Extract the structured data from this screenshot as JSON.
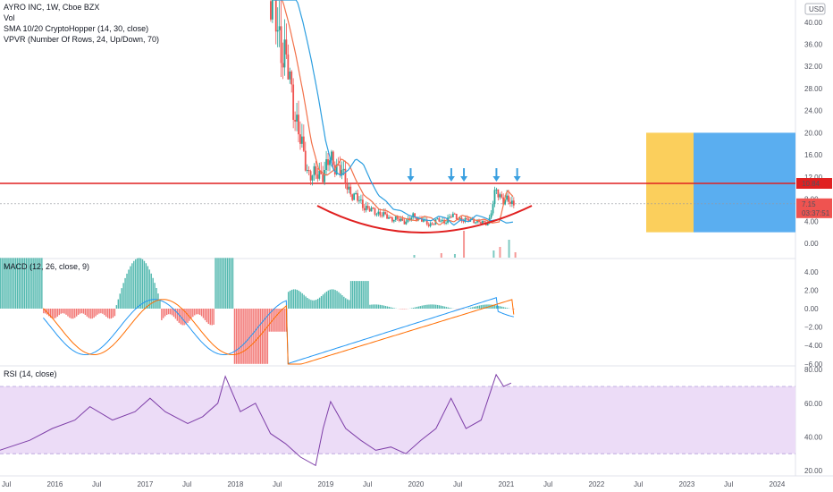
{
  "legend": {
    "symbol_line": "AYRO INC, 1W, Cboe BZX",
    "vol": "Vol",
    "sma": "SMA 10/20 CryptoHopper (14, 30, close)",
    "vpvr": "VPVR (Number Of Rows, 24, Up/Down, 70)",
    "macd": "MACD (12, 26, close, 9)",
    "rsi": "RSI (14, close)"
  },
  "currency_badge": "USD",
  "price_tags": {
    "resistance": "10.84",
    "last": "7.15",
    "countdown": "03:37:51"
  },
  "colors": {
    "up": "#26a69a",
    "down": "#ef5350",
    "resistance": "#e02020",
    "sma_fast": "#f2714a",
    "sma_slow": "#2c9ee0",
    "arrow": "#3ba0e0",
    "box_yellow": "#fbcf5c",
    "box_blue": "#5aaef0",
    "macd_line": "#2196f3",
    "signal_line": "#ff6d00",
    "rsi_line": "#7e3fa8",
    "rsi_band": "#ecdcf7"
  },
  "time_axis": [
    "Jul",
    "2016",
    "Jul",
    "2017",
    "Jul",
    "2018",
    "Jul",
    "2019",
    "Jul",
    "2020",
    "Jul",
    "2021",
    "Jul",
    "2022",
    "Jul",
    "2023",
    "Jul",
    "2024"
  ],
  "chart_data": [
    {
      "type": "candlestick",
      "title": "AYRO INC, 1W, Cboe BZX",
      "y_axis_ticks": [
        "0.00",
        "4.00",
        "8.00",
        "12.00",
        "16.00",
        "20.00",
        "24.00",
        "28.00",
        "32.00",
        "36.00",
        "40.00"
      ],
      "ylim": [
        -1,
        44
      ],
      "resistance_level": 10.84,
      "last_price": 7.15,
      "annotations": [
        "horizontal resistance line at 10.84",
        "rounded-bottom arc",
        "5 down arrows",
        "yellow and blue projection boxes"
      ],
      "close_series": {
        "x": [
          "2018-06",
          "2018-07",
          "2018-08",
          "2018-09",
          "2018-10",
          "2018-11",
          "2018-12",
          "2019-01",
          "2019-02",
          "2019-03",
          "2019-04",
          "2019-05",
          "2019-06",
          "2019-07",
          "2019-08",
          "2019-09",
          "2019-10",
          "2019-11",
          "2019-12",
          "2020-01",
          "2020-02",
          "2020-03",
          "2020-04",
          "2020-05",
          "2020-06",
          "2020-07",
          "2020-08",
          "2020-09",
          "2020-10",
          "2020-11",
          "2020-12",
          "2021-01",
          "2021-02"
        ],
        "y": [
          44,
          39,
          33,
          26,
          18,
          13,
          12,
          13,
          15,
          14,
          11,
          8.5,
          7.5,
          6,
          5.8,
          5,
          4.6,
          4.2,
          4,
          4.8,
          4.5,
          3.2,
          4.2,
          3.8,
          5,
          4.6,
          4,
          4.3,
          3.6,
          3.8,
          9.5,
          8,
          7.15
        ]
      }
    },
    {
      "type": "bar",
      "title": "MACD (12, 26, close, 9)",
      "y_axis_ticks": [
        "4.00",
        "2.00",
        "0.00",
        "−2.00",
        "−4.00",
        "−6.00"
      ],
      "ylim": [
        -6,
        5.5
      ]
    },
    {
      "type": "line",
      "title": "RSI (14, close)",
      "y_axis_ticks": [
        "80.00",
        "60.00",
        "40.00",
        "20.00"
      ],
      "ylim": [
        15,
        85
      ],
      "band": [
        30,
        70
      ],
      "series": [
        {
          "x": [
            "2015-06",
            "2015-10",
            "2016-01",
            "2016-04",
            "2016-06",
            "2016-09",
            "2016-12",
            "2017-02",
            "2017-04",
            "2017-07",
            "2017-09",
            "2017-11",
            "2017-12",
            "2018-02",
            "2018-04",
            "2018-06",
            "2018-08",
            "2018-10",
            "2018-12",
            "2019-01",
            "2019-02",
            "2019-04",
            "2019-06",
            "2019-08",
            "2019-10",
            "2019-12",
            "2020-02",
            "2020-04",
            "2020-06",
            "2020-08",
            "2020-10",
            "2020-12",
            "2021-01",
            "2021-02"
          ],
          "y": [
            32,
            38,
            45,
            50,
            58,
            50,
            55,
            63,
            55,
            48,
            52,
            60,
            76,
            55,
            60,
            42,
            36,
            28,
            23,
            45,
            61,
            45,
            38,
            32,
            34,
            30,
            38,
            45,
            63,
            45,
            50,
            77,
            70,
            72
          ]
        }
      ]
    }
  ]
}
